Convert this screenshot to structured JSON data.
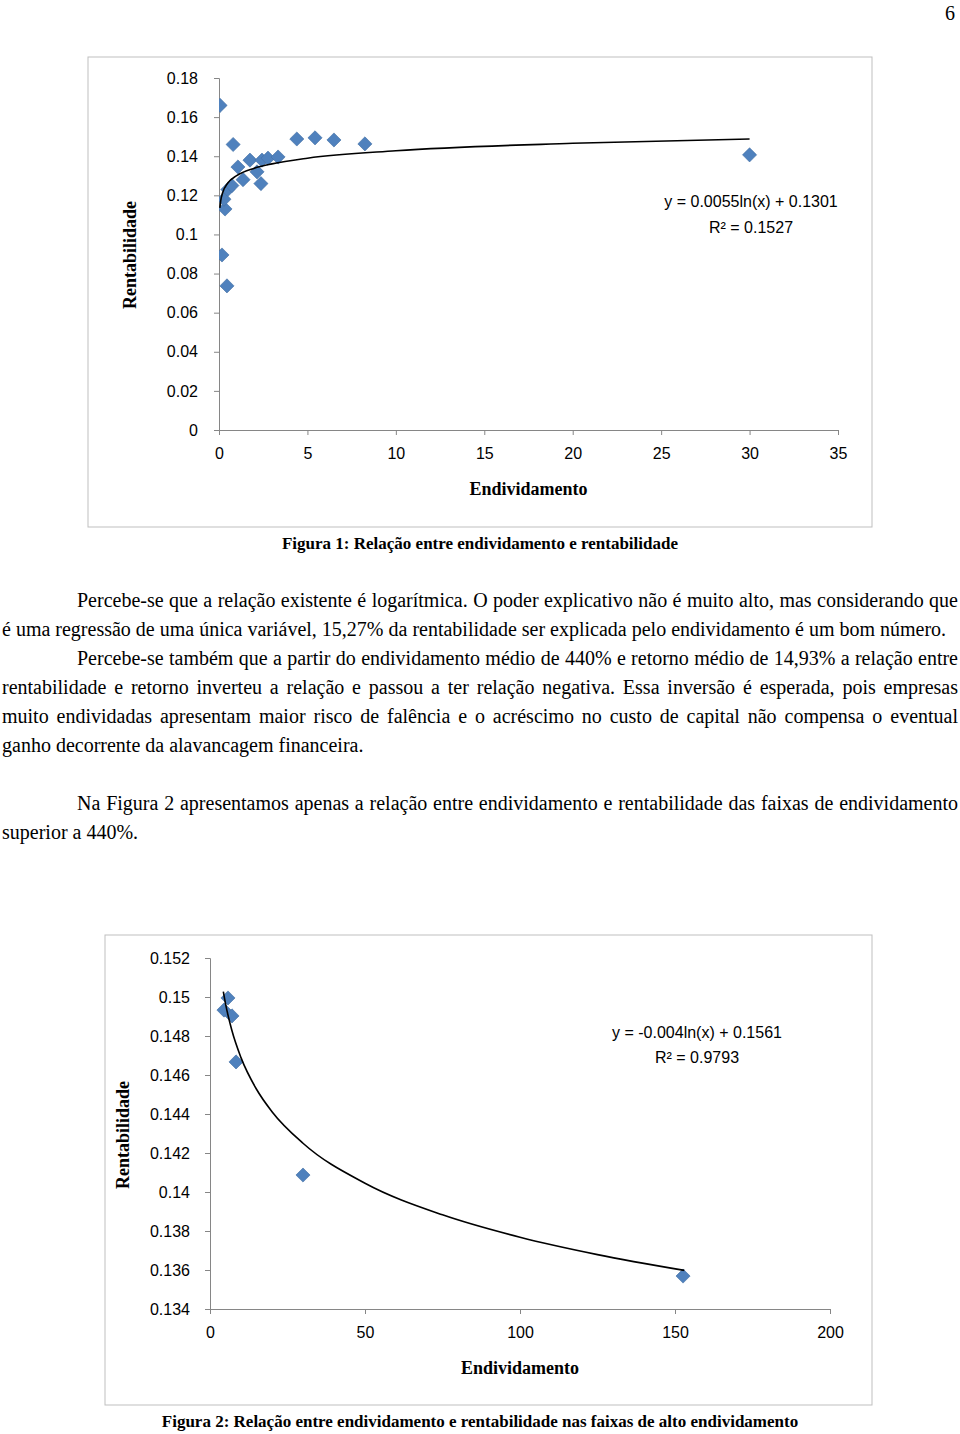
{
  "page_number": "6",
  "paragraphs": [
    "Percebe-se que a relação existente é logarítmica. O poder explicativo não é muito alto, mas considerando que é uma regressão de uma única variável, 15,27% da rentabilidade ser explicada pelo endividamento é um bom número.",
    "Percebe-se também que a partir do endividamento médio de 440% e retorno médio de 14,93% a relação entre rentabilidade e retorno inverteu a relação e passou a ter relação negativa. Essa inversão é esperada, pois empresas muito endividadas apresentam maior risco de falência e o acréscimo no custo de capital não compensa o eventual ganho decorrente da alavancagem financeira.",
    "Na Figura 2 apresentamos apenas a relação entre endividamento e rentabilidade das faixas de endividamento superior a 440%."
  ],
  "chart_data": [
    {
      "type": "scatter",
      "caption": "Figura 1: Relação entre endividamento e rentabilidade",
      "x_label": "Endividamento",
      "y_label": "Rentabilidade",
      "xlim": [
        0,
        35
      ],
      "xticks": [
        0,
        5,
        10,
        15,
        20,
        25,
        30,
        35
      ],
      "ylim": [
        0,
        0.18
      ],
      "yticks": [
        0,
        0.02,
        0.04,
        0.06,
        0.08,
        0.1,
        0.12,
        0.14,
        0.16,
        0.18
      ],
      "series": [
        {
          "type": "scatter",
          "color": "#4f81bd",
          "marker": "diamond",
          "x": [
            0.06,
            0.17,
            0.45,
            0.8,
            0.34,
            0.28,
            0.5,
            0.73,
            1.07,
            1.36,
            1.75,
            2.15,
            2.43,
            2.37,
            2.77,
            3.34,
            4.4,
            5.43,
            6.5,
            8.25,
            30.0
          ],
          "values": [
            0.166,
            0.0895,
            0.0737,
            0.146,
            0.113,
            0.118,
            0.123,
            0.125,
            0.1345,
            0.128,
            0.138,
            0.132,
            0.138,
            0.126,
            0.139,
            0.1396,
            0.1488,
            0.1494,
            0.1483,
            0.1463,
            0.1407
          ]
        },
        {
          "type": "line",
          "color": "#000000",
          "line_style": "solid",
          "x": [
            0.05,
            0.1,
            0.2,
            0.5,
            1,
            2,
            3,
            5,
            10,
            20,
            30
          ],
          "values": [
            0.1136,
            0.1174,
            0.1212,
            0.1263,
            0.1301,
            0.1339,
            0.1361,
            0.139,
            0.1428,
            0.1466,
            0.1488
          ]
        }
      ],
      "annotations": [
        "y = 0.0055ln(x) + 0.1301",
        "R² = 0.1527"
      ]
    },
    {
      "type": "scatter",
      "caption": "Figura 2: Relação entre endividamento e rentabilidade nas faixas de alto endividamento",
      "x_label": "Endividamento",
      "y_label": "Rentabilidade",
      "xlim": [
        0,
        200
      ],
      "xticks": [
        0,
        50,
        100,
        150,
        200
      ],
      "ylim": [
        0.134,
        0.152
      ],
      "yticks": [
        0.134,
        0.136,
        0.138,
        0.14,
        0.142,
        0.144,
        0.146,
        0.148,
        0.15,
        0.152
      ],
      "series": [
        {
          "type": "scatter",
          "color": "#4f81bd",
          "marker": "diamond",
          "x": [
            5.8,
            4.5,
            7.1,
            8.4,
            30.0,
            152.6
          ],
          "values": [
            0.14995,
            0.14933,
            0.14903,
            0.14667,
            0.14087,
            0.13569
          ]
        },
        {
          "type": "line",
          "color": "#000000",
          "line_style": "solid",
          "x": [
            4.3,
            5,
            7,
            10,
            15,
            20,
            30,
            50,
            75,
            100,
            125,
            153
          ],
          "values": [
            0.15027,
            0.14966,
            0.14832,
            0.14689,
            0.14527,
            0.14412,
            0.1425,
            0.14045,
            0.13883,
            0.13768,
            0.13679,
            0.13598
          ]
        }
      ],
      "annotations": [
        "y = -0.004ln(x) + 0.1561",
        "R² = 0.9793"
      ]
    }
  ]
}
